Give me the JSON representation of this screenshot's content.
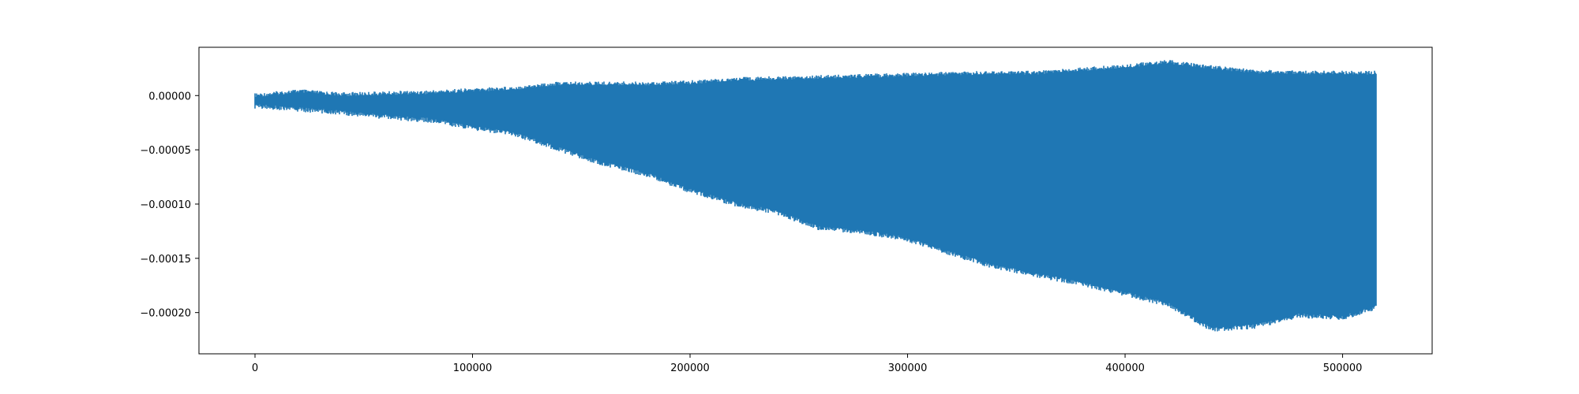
{
  "chart_data": {
    "type": "line",
    "title": "",
    "xlabel": "",
    "ylabel": "",
    "xlim": [
      -25770,
      541170
    ],
    "ylim": [
      -0.000238,
      4.45e-05
    ],
    "grid": false,
    "legend": "none",
    "x_ticks": [
      {
        "value": 0,
        "label": "0"
      },
      {
        "value": 100000,
        "label": "100000"
      },
      {
        "value": 200000,
        "label": "200000"
      },
      {
        "value": 300000,
        "label": "300000"
      },
      {
        "value": 400000,
        "label": "400000"
      },
      {
        "value": 500000,
        "label": "500000"
      }
    ],
    "y_ticks": [
      {
        "value": 0.0,
        "label": "0.00000"
      },
      {
        "value": -5e-05,
        "label": "−0.00005"
      },
      {
        "value": -0.0001,
        "label": "−0.00010"
      },
      {
        "value": -0.00015,
        "label": "−0.00015"
      },
      {
        "value": -0.0002,
        "label": "−0.00020"
      }
    ],
    "series": [
      {
        "color": "#1f77b4",
        "x_range": [
          0,
          515400
        ],
        "x": [
          0,
          20000,
          40000,
          60000,
          80000,
          100000,
          120000,
          140000,
          160000,
          180000,
          200000,
          220000,
          240000,
          260000,
          280000,
          300000,
          320000,
          340000,
          360000,
          380000,
          400000,
          420000,
          440000,
          460000,
          480000,
          500000,
          515000
        ],
        "upper": [
          2e-06,
          6e-06,
          3e-06,
          4e-06,
          5e-06,
          7e-06,
          9e-06,
          1.3e-05,
          1.3e-05,
          1.3e-05,
          1.4e-05,
          1.7e-05,
          1.8e-05,
          1.9e-05,
          2e-05,
          2.1e-05,
          2.2e-05,
          2.3e-05,
          2.3e-05,
          2.6e-05,
          2.9e-05,
          3.3e-05,
          2.8e-05,
          2.4e-05,
          2.3e-05,
          2.3e-05,
          2.3e-05
        ],
        "lower": [
          -1.2e-05,
          -1.5e-05,
          -1.8e-05,
          -2.2e-05,
          -2.5e-05,
          -3.2e-05,
          -3.8e-05,
          -5.2e-05,
          -6.5e-05,
          -7.5e-05,
          -9e-05,
          -0.000102,
          -0.00011,
          -0.000125,
          -0.000128,
          -0.000135,
          -0.000148,
          -0.00016,
          -0.000168,
          -0.000176,
          -0.000185,
          -0.000195,
          -0.000218,
          -0.000215,
          -0.000205,
          -0.000207,
          -0.000198
        ]
      }
    ]
  }
}
